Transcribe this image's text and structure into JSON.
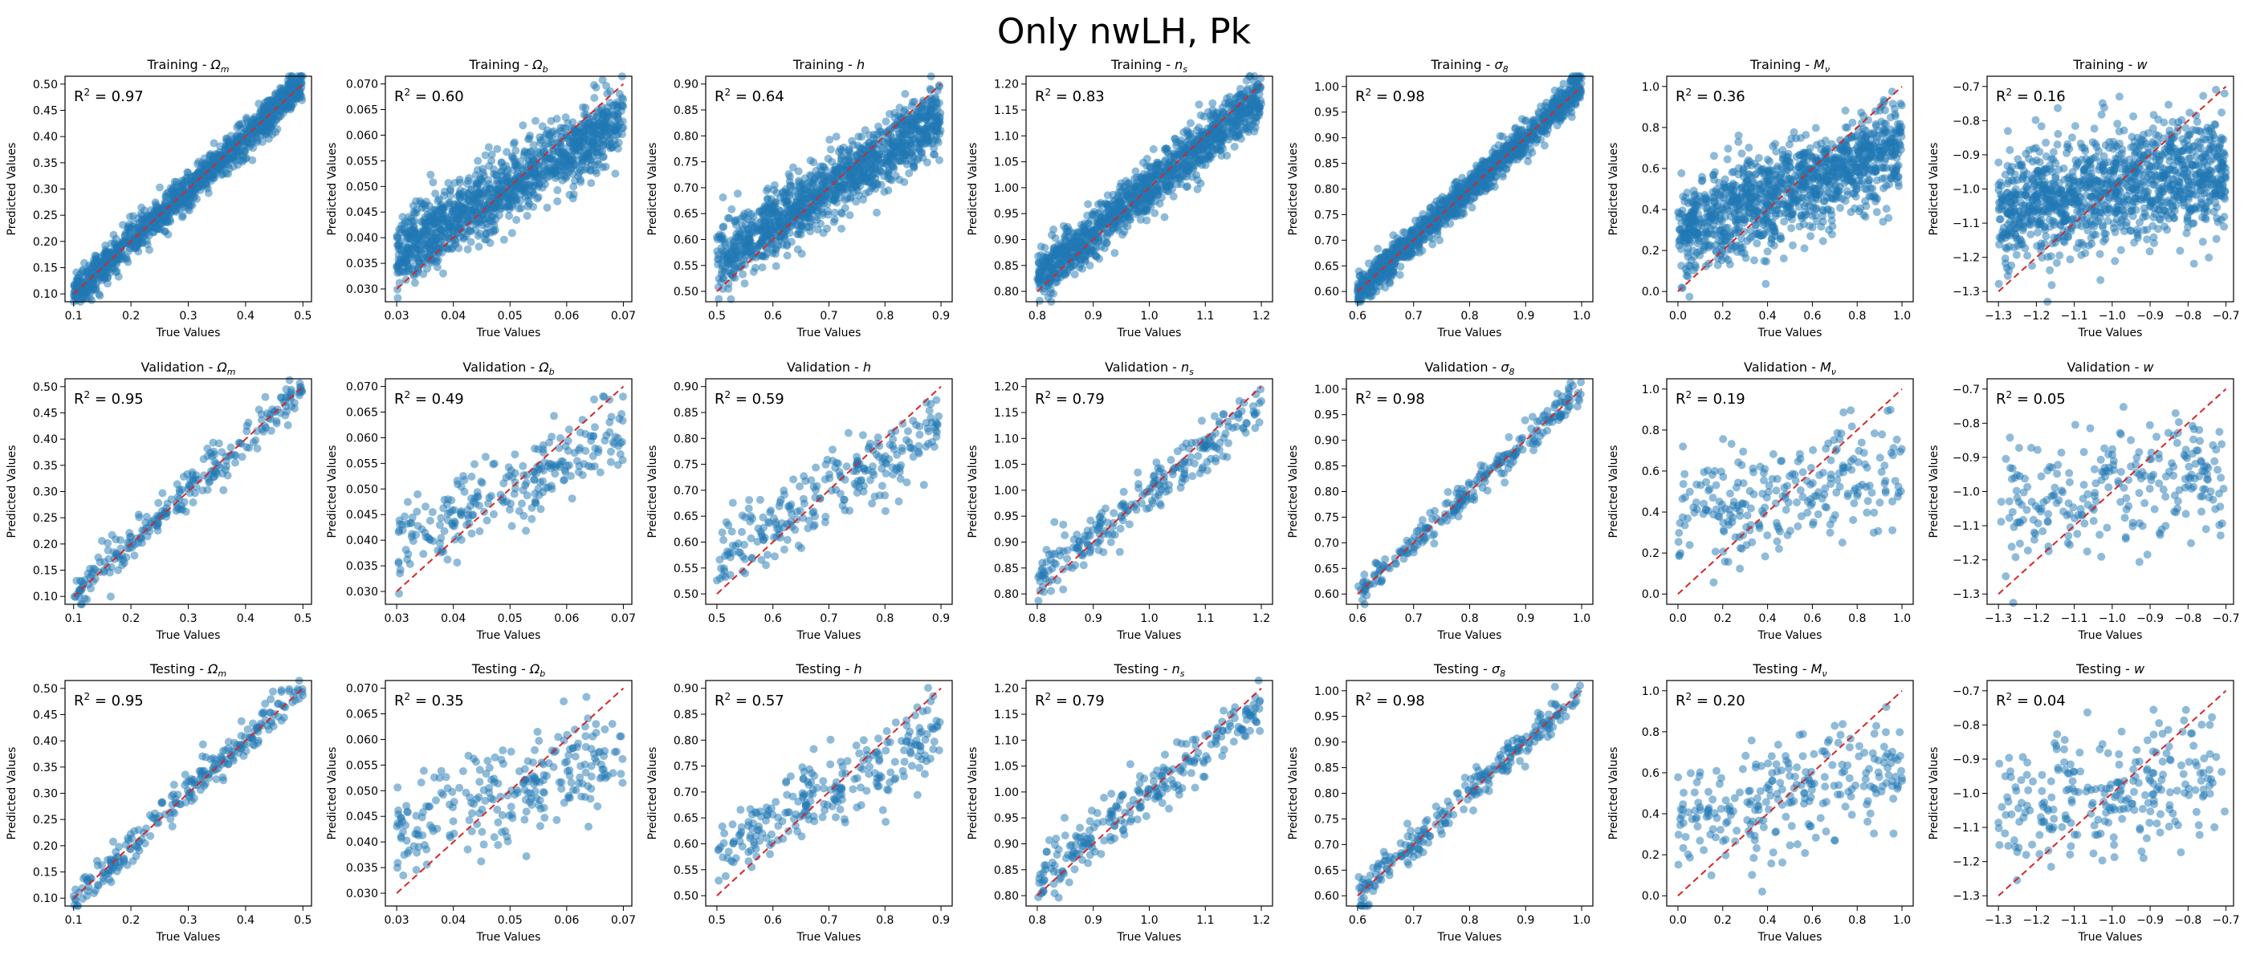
{
  "title": "Only nwLH, Pk",
  "point_color": "#1f77b4",
  "line_color": "#d62728",
  "xlabel": "True Values",
  "ylabel": "Predicted Values",
  "chart_data": {
    "type": "scatter",
    "rows": [
      "Training",
      "Validation",
      "Testing"
    ],
    "params": [
      {
        "name": "Ωm",
        "sym": "Ω",
        "sub": "m",
        "xlim": [
          0.085,
          0.515
        ],
        "ylim": [
          0.085,
          0.515
        ],
        "xticks": [
          0.1,
          0.2,
          0.3,
          0.4,
          0.5
        ],
        "yticks": [
          0.1,
          0.15,
          0.2,
          0.25,
          0.3,
          0.35,
          0.4,
          0.45,
          0.5
        ],
        "xtick_labels": [
          "0.1",
          "0.2",
          "0.3",
          "0.4",
          "0.5"
        ],
        "ytick_labels": [
          "0.10",
          "0.15",
          "0.20",
          "0.25",
          "0.30",
          "0.35",
          "0.40",
          "0.45",
          "0.50"
        ],
        "r2": [
          "0.97",
          "0.95",
          "0.95"
        ]
      },
      {
        "name": "Ωb",
        "sym": "Ω",
        "sub": "b",
        "xlim": [
          0.028,
          0.0715
        ],
        "ylim": [
          0.0275,
          0.0715
        ],
        "xticks": [
          0.03,
          0.04,
          0.05,
          0.06,
          0.07
        ],
        "yticks": [
          0.03,
          0.035,
          0.04,
          0.045,
          0.05,
          0.055,
          0.06,
          0.065,
          0.07
        ],
        "xtick_labels": [
          "0.03",
          "0.04",
          "0.05",
          "0.06",
          "0.07"
        ],
        "ytick_labels": [
          "0.030",
          "0.035",
          "0.040",
          "0.045",
          "0.050",
          "0.055",
          "0.060",
          "0.065",
          "0.070"
        ],
        "r2": [
          "0.60",
          "0.49",
          "0.35"
        ]
      },
      {
        "name": "h",
        "sym": "h",
        "sub": "",
        "xlim": [
          0.48,
          0.92
        ],
        "ylim": [
          0.48,
          0.915
        ],
        "xticks": [
          0.5,
          0.6,
          0.7,
          0.8,
          0.9
        ],
        "yticks": [
          0.5,
          0.55,
          0.6,
          0.65,
          0.7,
          0.75,
          0.8,
          0.85,
          0.9
        ],
        "xtick_labels": [
          "0.5",
          "0.6",
          "0.7",
          "0.8",
          "0.9"
        ],
        "ytick_labels": [
          "0.50",
          "0.55",
          "0.60",
          "0.65",
          "0.70",
          "0.75",
          "0.80",
          "0.85",
          "0.90"
        ],
        "r2": [
          "0.64",
          "0.59",
          "0.57"
        ]
      },
      {
        "name": "ns",
        "sym": "n",
        "sub": "s",
        "xlim": [
          0.78,
          1.22
        ],
        "ylim": [
          0.78,
          1.215
        ],
        "xticks": [
          0.8,
          0.9,
          1.0,
          1.1,
          1.2
        ],
        "yticks": [
          0.8,
          0.85,
          0.9,
          0.95,
          1.0,
          1.05,
          1.1,
          1.15,
          1.2
        ],
        "xtick_labels": [
          "0.8",
          "0.9",
          "1.0",
          "1.1",
          "1.2"
        ],
        "ytick_labels": [
          "0.80",
          "0.85",
          "0.90",
          "0.95",
          "1.00",
          "1.05",
          "1.10",
          "1.15",
          "1.20"
        ],
        "r2": [
          "0.83",
          "0.79",
          "0.79"
        ]
      },
      {
        "name": "σ8",
        "sym": "σ",
        "sub": "8",
        "xlim": [
          0.58,
          1.02
        ],
        "ylim": [
          0.58,
          1.02
        ],
        "xticks": [
          0.6,
          0.7,
          0.8,
          0.9,
          1.0
        ],
        "yticks": [
          0.6,
          0.65,
          0.7,
          0.75,
          0.8,
          0.85,
          0.9,
          0.95,
          1.0
        ],
        "xtick_labels": [
          "0.6",
          "0.7",
          "0.8",
          "0.9",
          "1.0"
        ],
        "ytick_labels": [
          "0.60",
          "0.65",
          "0.70",
          "0.75",
          "0.80",
          "0.85",
          "0.90",
          "0.95",
          "1.00"
        ],
        "r2": [
          "0.98",
          "0.98",
          "0.98"
        ]
      },
      {
        "name": "Mν",
        "sym": "M",
        "sub": "ν",
        "xlim": [
          -0.05,
          1.05
        ],
        "ylim": [
          -0.05,
          1.05
        ],
        "xticks": [
          0,
          0.2,
          0.4,
          0.6,
          0.8,
          1.0
        ],
        "yticks": [
          0,
          0.2,
          0.4,
          0.6,
          0.8,
          1.0
        ],
        "xtick_labels": [
          "0.0",
          "0.2",
          "0.4",
          "0.6",
          "0.8",
          "1.0"
        ],
        "ytick_labels": [
          "0.0",
          "0.2",
          "0.4",
          "0.6",
          "0.8",
          "1.0"
        ],
        "r2": [
          "0.36",
          "0.19",
          "0.20"
        ]
      },
      {
        "name": "w",
        "sym": "w",
        "sub": "",
        "xlim": [
          -1.33,
          -0.68
        ],
        "ylim": [
          -1.33,
          -0.67
        ],
        "xticks": [
          -1.3,
          -1.2,
          -1.1,
          -1.0,
          -0.9,
          -0.8,
          -0.7
        ],
        "yticks": [
          -1.3,
          -1.2,
          -1.1,
          -1.0,
          -0.9,
          -0.8,
          -0.7
        ],
        "xtick_labels": [
          "−1.3",
          "−1.2",
          "−1.1",
          "−1.0",
          "−0.9",
          "−0.8",
          "−0.7"
        ],
        "ytick_labels": [
          "−1.3",
          "−1.2",
          "−1.1",
          "−1.0",
          "−0.9",
          "−0.8",
          "−0.7"
        ],
        "r2": [
          "0.16",
          "0.05",
          "0.04"
        ]
      }
    ],
    "reference_line": "y = x",
    "points_per_panel": [
      1200,
      250,
      250
    ],
    "sample_points": {
      "Training-Ωm": [
        [
          0.1,
          0.11
        ],
        [
          0.2,
          0.19
        ],
        [
          0.3,
          0.3
        ],
        [
          0.4,
          0.41
        ],
        [
          0.5,
          0.47
        ]
      ],
      "Training-Mν": [
        [
          0.0,
          0.4
        ],
        [
          0.25,
          0.45
        ],
        [
          0.5,
          0.5
        ],
        [
          0.75,
          0.55
        ],
        [
          1.0,
          0.6
        ]
      ],
      "Training-w": [
        [
          -1.3,
          -1.05
        ],
        [
          -1.1,
          -1.02
        ],
        [
          -0.9,
          -0.99
        ],
        [
          -0.7,
          -0.96
        ]
      ]
    }
  }
}
